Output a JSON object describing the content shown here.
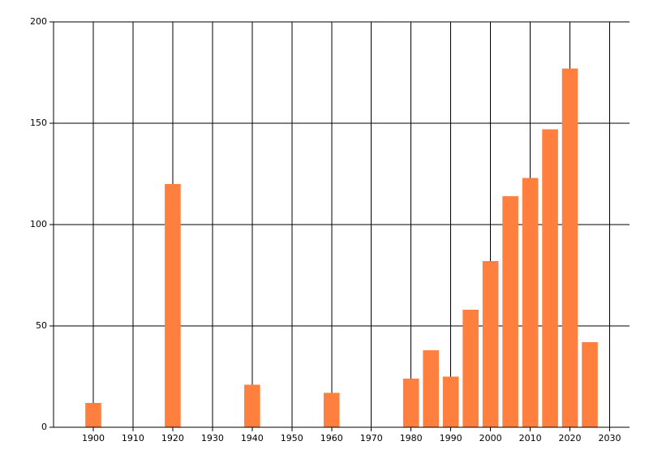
{
  "chart_data": {
    "type": "bar",
    "x": [
      1900,
      1920,
      1940,
      1960,
      1980,
      1985,
      1990,
      1995,
      2000,
      2005,
      2010,
      2015,
      2020,
      2025
    ],
    "values": [
      12,
      120,
      21,
      17,
      24,
      38,
      25,
      58,
      82,
      114,
      123,
      147,
      177,
      42
    ],
    "color": "#ff7f3f",
    "xlim": [
      1890,
      2035
    ],
    "xticks": [
      1900,
      1910,
      1920,
      1930,
      1940,
      1950,
      1960,
      1970,
      1980,
      1990,
      2000,
      2010,
      2020,
      2030
    ],
    "ylim": [
      0,
      200
    ],
    "yticks": [
      0,
      50,
      100,
      150,
      200
    ],
    "grid": true
  }
}
